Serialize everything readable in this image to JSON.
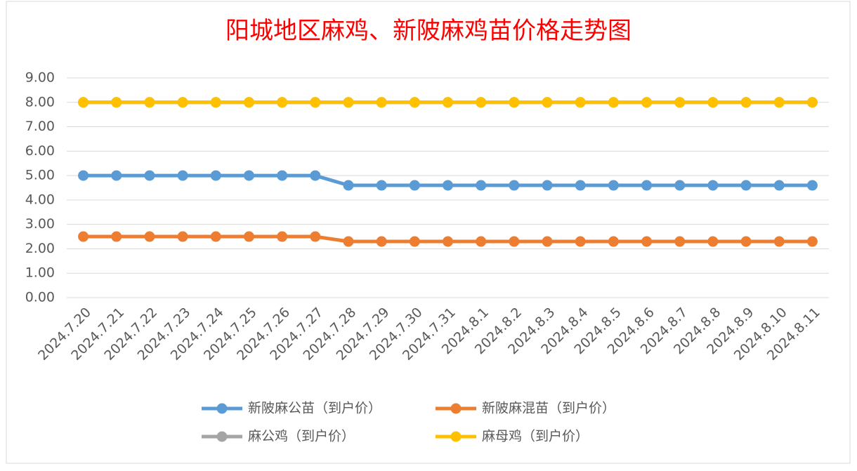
{
  "chart_data": {
    "type": "line",
    "title": "阳城地区麻鸡、新陂麻鸡苗价格走势图",
    "categories": [
      "2024.7.20",
      "2024.7.21",
      "2024.7.22",
      "2024.7.23",
      "2024.7.24",
      "2024.7.25",
      "2024.7.26",
      "2024.7.27",
      "2024.7.28",
      "2024.7.29",
      "2024.7.30",
      "2024.7.31",
      "2024.8.1",
      "2024.8.2",
      "2024.8.3",
      "2024.8.4",
      "2024.8.5",
      "2024.8.6",
      "2024.8.7",
      "2024.8.8",
      "2024.8.9",
      "2024.8.10",
      "2024.8.11"
    ],
    "series": [
      {
        "name": "新陂麻公苗（到户价）",
        "color": "#5b9bd5",
        "values": [
          5,
          5,
          5,
          5,
          5,
          5,
          5,
          5,
          4.6,
          4.6,
          4.6,
          4.6,
          4.6,
          4.6,
          4.6,
          4.6,
          4.6,
          4.6,
          4.6,
          4.6,
          4.6,
          4.6,
          4.6
        ]
      },
      {
        "name": "新陂麻混苗（到户价）",
        "color": "#ed7d31",
        "values": [
          2.5,
          2.5,
          2.5,
          2.5,
          2.5,
          2.5,
          2.5,
          2.5,
          2.3,
          2.3,
          2.3,
          2.3,
          2.3,
          2.3,
          2.3,
          2.3,
          2.3,
          2.3,
          2.3,
          2.3,
          2.3,
          2.3,
          2.3
        ]
      },
      {
        "name": "麻公鸡（到户价）",
        "color": "#a5a5a5",
        "values": [
          8,
          8,
          8,
          8,
          8,
          8,
          8,
          8,
          8,
          8,
          8,
          8,
          8,
          8,
          8,
          8,
          8,
          8,
          8,
          8,
          8,
          8,
          8
        ]
      },
      {
        "name": "麻母鸡（到户价）",
        "color": "#ffc000",
        "values": [
          8,
          8,
          8,
          8,
          8,
          8,
          8,
          8,
          8,
          8,
          8,
          8,
          8,
          8,
          8,
          8,
          8,
          8,
          8,
          8,
          8,
          8,
          8
        ]
      }
    ],
    "ylim": [
      0,
      9
    ],
    "yticks": [
      {
        "value": 0,
        "label": "0.00"
      },
      {
        "value": 1,
        "label": "1.00"
      },
      {
        "value": 2,
        "label": "2.00"
      },
      {
        "value": 3,
        "label": "3.00"
      },
      {
        "value": 4,
        "label": "4.00"
      },
      {
        "value": 5,
        "label": "5.00"
      },
      {
        "value": 6,
        "label": "6.00"
      },
      {
        "value": 7,
        "label": "7.00"
      },
      {
        "value": 8,
        "label": "8.00"
      },
      {
        "value": 9,
        "label": "9.00"
      }
    ],
    "grid": true,
    "legend": "bottom"
  }
}
